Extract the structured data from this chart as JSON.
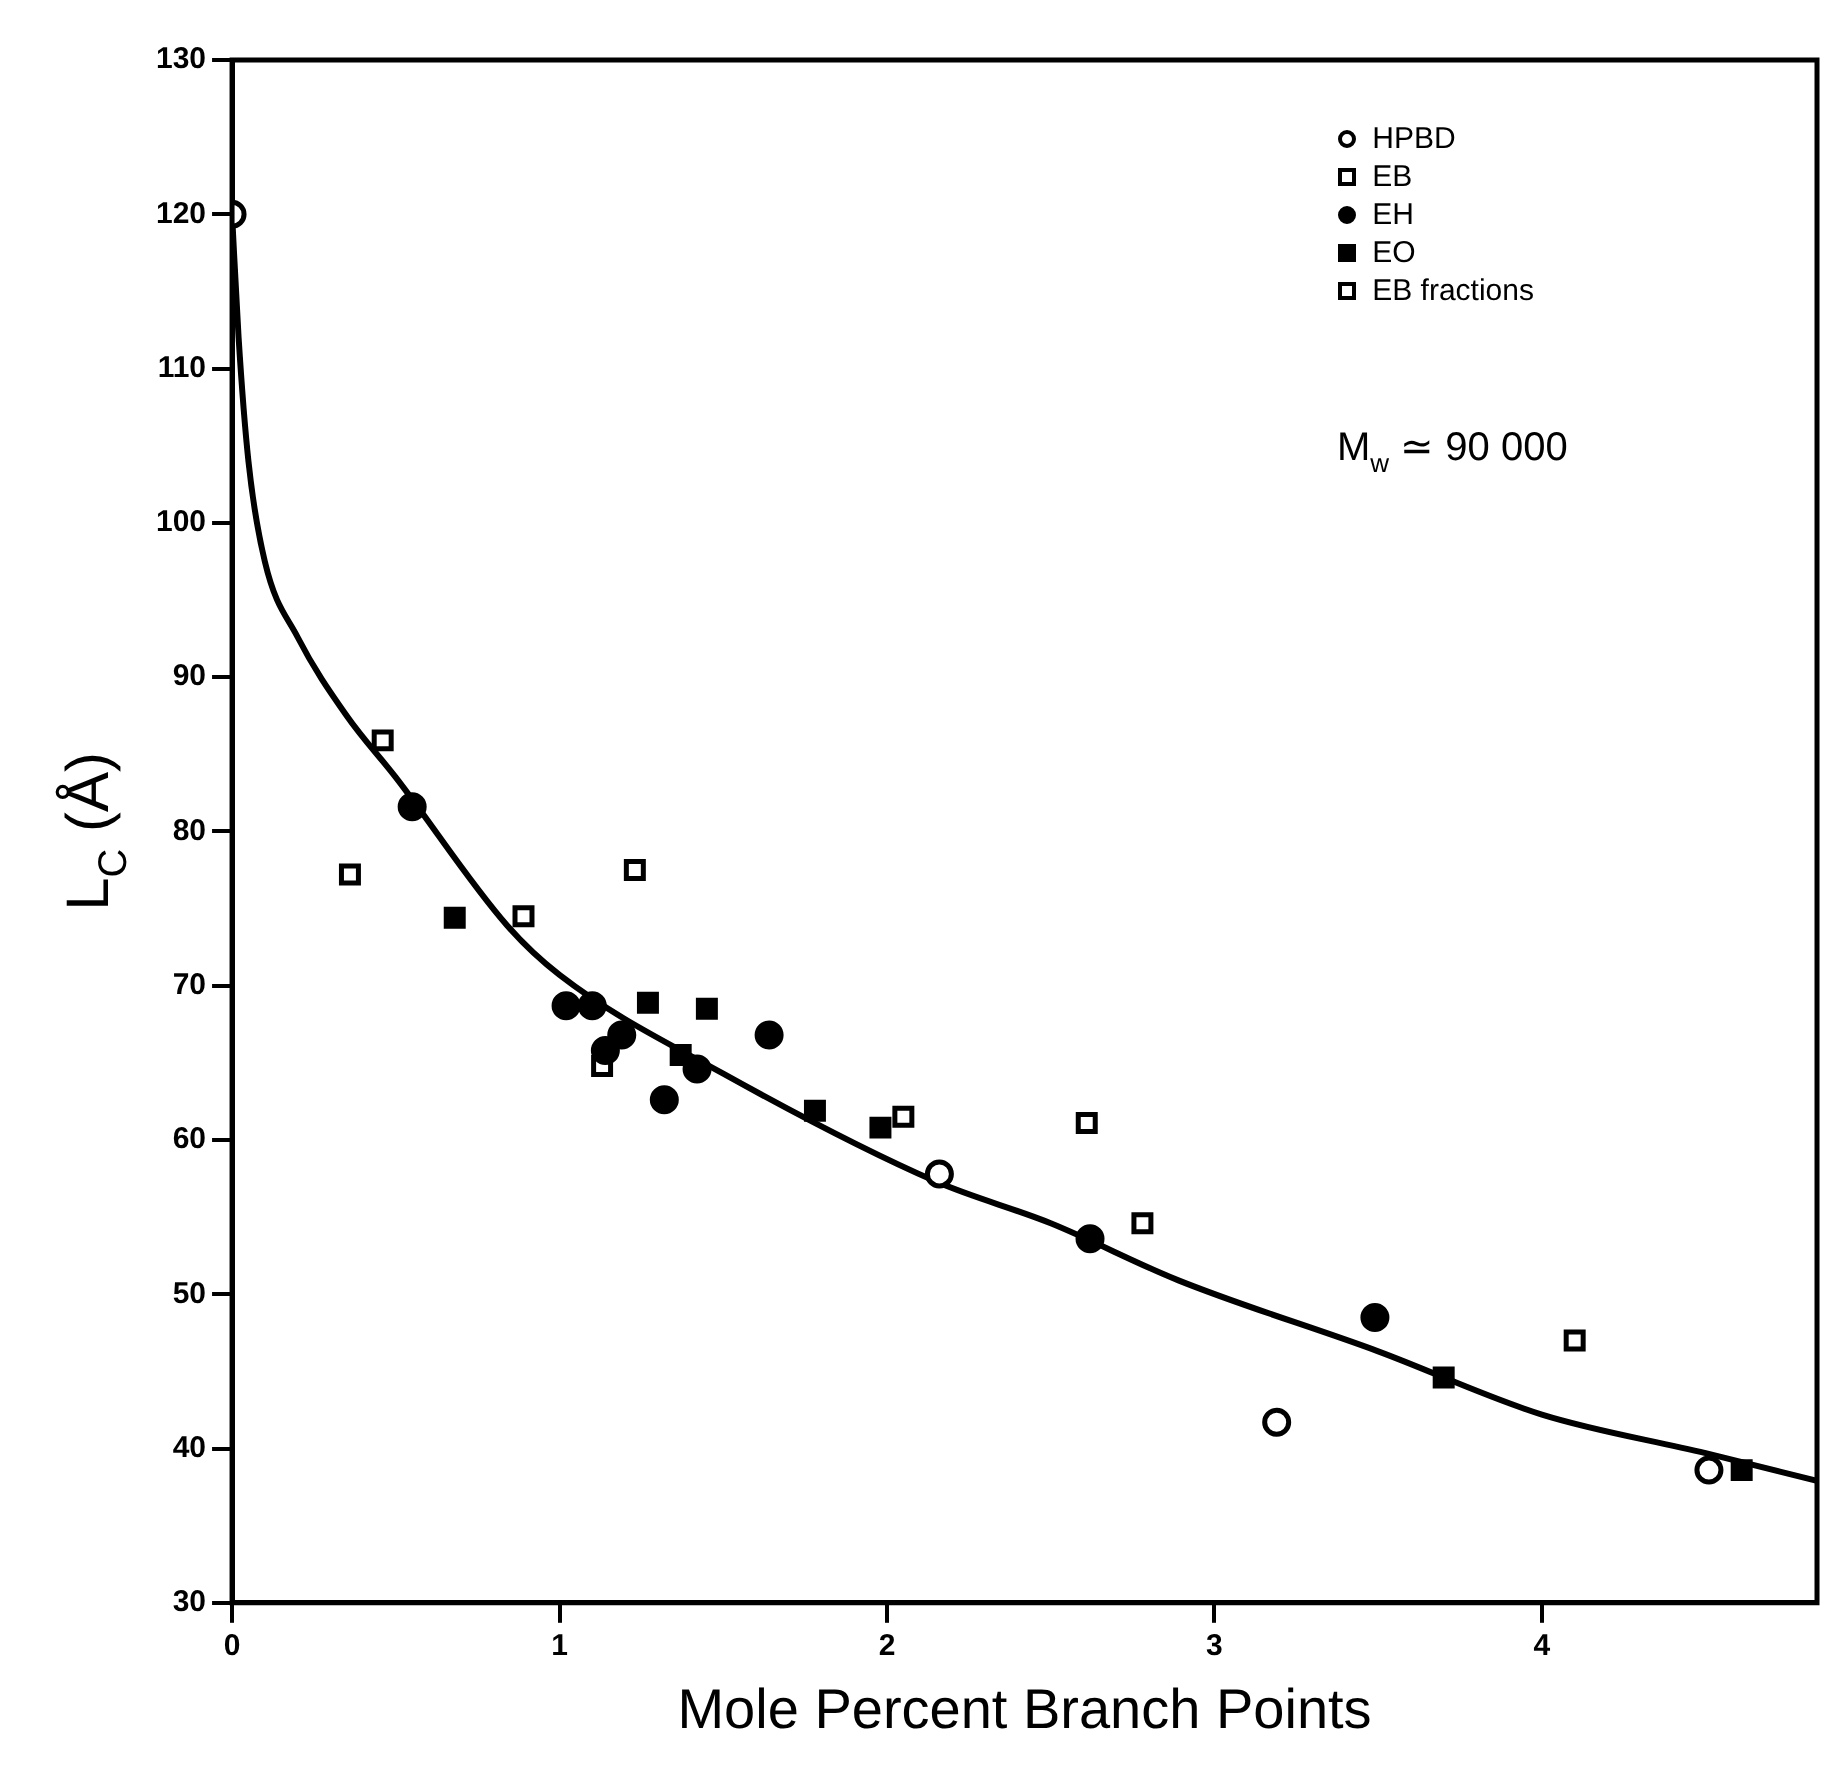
{
  "chart_data": {
    "type": "scatter",
    "xlabel": "Mole Percent Branch Points",
    "ylabel": "L$_{C}$ (Å)",
    "xlim": [
      0,
      4.84
    ],
    "xticks": [
      0,
      1,
      2,
      3,
      4
    ],
    "ylim": [
      30,
      130
    ],
    "yticks": [
      30,
      40,
      50,
      60,
      70,
      80,
      90,
      100,
      110,
      120,
      130
    ],
    "grid": false,
    "legend": "top right",
    "annotations": [
      "M$_{w}$ ≃ 90 000"
    ],
    "series": [
      {
        "name": "HPBD",
        "color": "#ffffff",
        "marker": "circle",
        "x": [
          0,
          2.16,
          3.19,
          4.51
        ],
        "values": [
          120,
          57.8,
          41.7,
          38.6
        ]
      },
      {
        "name": "EB",
        "color": "#ffffff",
        "marker": "square",
        "x": [
          0.46,
          1.23,
          0.89,
          2.78
        ],
        "values": [
          85.9,
          77.5,
          74.5,
          54.6
        ]
      },
      {
        "name": "EH",
        "color": "#000000",
        "marker": "circle",
        "x": [
          0.55,
          1.02,
          1.1,
          1.64,
          1.19,
          1.14,
          1.42,
          1.32,
          2.62,
          3.49
        ],
        "values": [
          81.6,
          68.7,
          68.7,
          66.8,
          66.8,
          65.8,
          64.6,
          62.6,
          53.6,
          48.5
        ]
      },
      {
        "name": "EO",
        "color": "#000000",
        "marker": "square",
        "x": [
          0.68,
          1.27,
          1.45,
          1.37,
          1.78,
          1.98,
          3.7,
          4.61
        ],
        "values": [
          74.4,
          68.9,
          68.5,
          65.5,
          61.9,
          60.8,
          44.6,
          38.6
        ]
      },
      {
        "name": "EB fractions",
        "color": "#ffffff",
        "marker": "square",
        "x": [
          0.36,
          1.13,
          2.05,
          2.61,
          4.1
        ],
        "values": [
          77.2,
          64.8,
          61.5,
          61.1,
          47.0
        ]
      },
      {
        "type": "line",
        "color": "#000000",
        "marker": "none",
        "line_style": "solid",
        "x": [
          0,
          0.02,
          0.05,
          0.1,
          0.2,
          0.35,
          0.5,
          0.84,
          1.0,
          1.5,
          2.15,
          2.5,
          2.89,
          3.5,
          4.0,
          4.5,
          4.84
        ],
        "values": [
          120,
          112,
          104,
          97.5,
          92.6,
          87.5,
          83.5,
          73.9,
          70.7,
          64.3,
          57.3,
          54.6,
          50.9,
          46.3,
          42.2,
          39.7,
          37.9
        ]
      }
    ]
  }
}
